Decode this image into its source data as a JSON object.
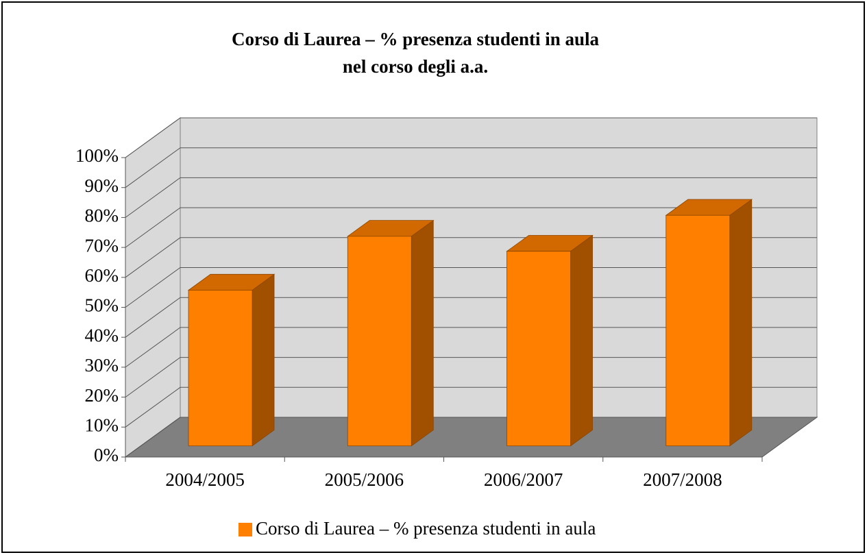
{
  "chart_data": {
    "type": "bar3d",
    "title": [
      "Corso di Laurea – % presenza studenti in aula",
      "nel corso degli a.a."
    ],
    "categories": [
      "2004/2005",
      "2005/2006",
      "2006/2007",
      "2007/2008"
    ],
    "series": [
      {
        "name": "Corso di Laurea – % presenza studenti in aula",
        "color": "#ff7f00",
        "values": [
          52,
          70,
          65,
          77
        ]
      }
    ],
    "ylim": [
      0,
      100
    ],
    "yticks": [
      {
        "value": 0,
        "label": "0%"
      },
      {
        "value": 10,
        "label": "10%"
      },
      {
        "value": 20,
        "label": "20%"
      },
      {
        "value": 30,
        "label": "30%"
      },
      {
        "value": 40,
        "label": "40%"
      },
      {
        "value": 50,
        "label": "50%"
      },
      {
        "value": 60,
        "label": "60%"
      },
      {
        "value": 70,
        "label": "70%"
      },
      {
        "value": 80,
        "label": "80%"
      },
      {
        "value": 90,
        "label": "90%"
      },
      {
        "value": 100,
        "label": "100%"
      }
    ],
    "grid": true,
    "legend": "bottom"
  }
}
